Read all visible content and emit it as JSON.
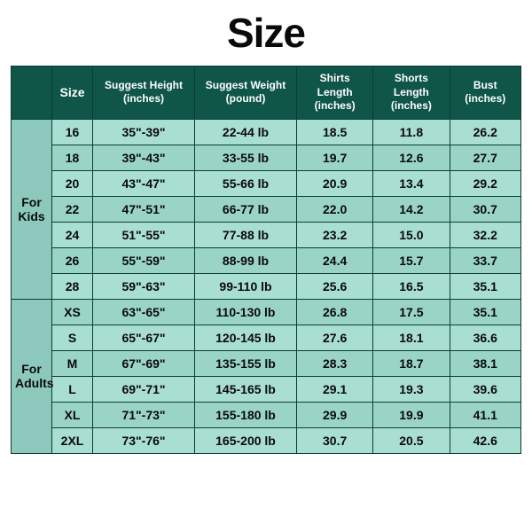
{
  "title": "Size",
  "title_fontsize": 46,
  "title_color": "#0a0a0a",
  "colors": {
    "header_bg": "#0f5548",
    "header_text": "#ffffff",
    "row_text": "#0a0a0a",
    "border": "#0b3d33",
    "stripe_a": "#a9ded3",
    "stripe_b": "#9ad4c7",
    "group_bg": "#8cc9bc"
  },
  "columns": [
    {
      "key": "group",
      "label": ""
    },
    {
      "key": "size",
      "label": "Size"
    },
    {
      "key": "height",
      "label": "Suggest Height (inches)"
    },
    {
      "key": "weight",
      "label": "Suggest Weight (pound)"
    },
    {
      "key": "shirt",
      "label": "Shirts Length (inches)"
    },
    {
      "key": "short",
      "label": "Shorts Length (inches)"
    },
    {
      "key": "bust",
      "label": "Bust (inches)"
    }
  ],
  "groups": [
    {
      "label": "For Kids",
      "rows": [
        {
          "size": "16",
          "height": "35\"-39\"",
          "weight": "22-44 lb",
          "shirt": "18.5",
          "short": "11.8",
          "bust": "26.2"
        },
        {
          "size": "18",
          "height": "39\"-43\"",
          "weight": "33-55 lb",
          "shirt": "19.7",
          "short": "12.6",
          "bust": "27.7"
        },
        {
          "size": "20",
          "height": "43\"-47\"",
          "weight": "55-66 lb",
          "shirt": "20.9",
          "short": "13.4",
          "bust": "29.2"
        },
        {
          "size": "22",
          "height": "47\"-51\"",
          "weight": "66-77 lb",
          "shirt": "22.0",
          "short": "14.2",
          "bust": "30.7"
        },
        {
          "size": "24",
          "height": "51\"-55\"",
          "weight": "77-88 lb",
          "shirt": "23.2",
          "short": "15.0",
          "bust": "32.2"
        },
        {
          "size": "26",
          "height": "55\"-59\"",
          "weight": "88-99 lb",
          "shirt": "24.4",
          "short": "15.7",
          "bust": "33.7"
        },
        {
          "size": "28",
          "height": "59\"-63\"",
          "weight": "99-110 lb",
          "shirt": "25.6",
          "short": "16.5",
          "bust": "35.1"
        }
      ]
    },
    {
      "label": "For Adults",
      "rows": [
        {
          "size": "XS",
          "height": "63\"-65\"",
          "weight": "110-130 lb",
          "shirt": "26.8",
          "short": "17.5",
          "bust": "35.1"
        },
        {
          "size": "S",
          "height": "65\"-67\"",
          "weight": "120-145 lb",
          "shirt": "27.6",
          "short": "18.1",
          "bust": "36.6"
        },
        {
          "size": "M",
          "height": "67\"-69\"",
          "weight": "135-155 lb",
          "shirt": "28.3",
          "short": "18.7",
          "bust": "38.1"
        },
        {
          "size": "L",
          "height": "69\"-71\"",
          "weight": "145-165 lb",
          "shirt": "29.1",
          "short": "19.3",
          "bust": "39.6"
        },
        {
          "size": "XL",
          "height": "71\"-73\"",
          "weight": "155-180 lb",
          "shirt": "29.9",
          "short": "19.9",
          "bust": "41.1"
        },
        {
          "size": "2XL",
          "height": "73\"-76\"",
          "weight": "165-200 lb",
          "shirt": "30.7",
          "short": "20.5",
          "bust": "42.6"
        }
      ]
    }
  ]
}
